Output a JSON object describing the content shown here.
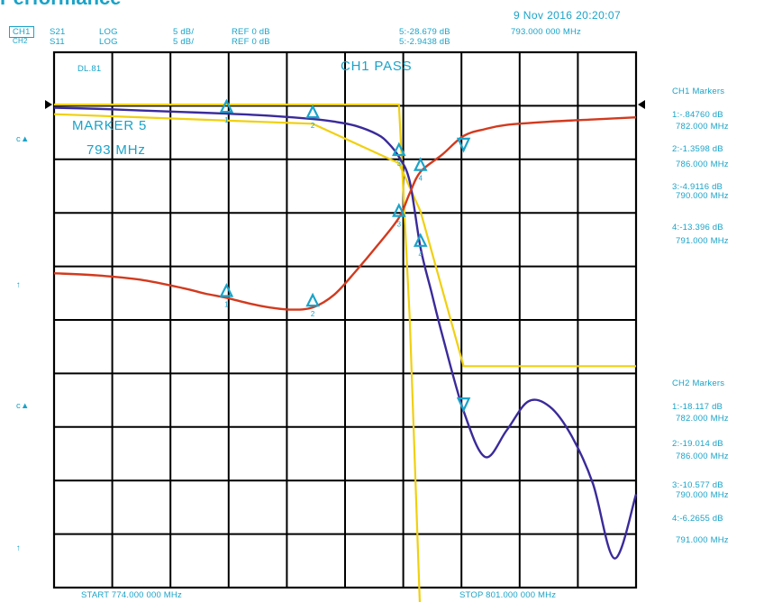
{
  "page_title_fragment": "Performance",
  "datetime": "9 Nov 2016  20:20:07",
  "header": {
    "ch1": {
      "label": "CH1",
      "param": "S21",
      "format": "LOG",
      "scale": "5 dB/",
      "ref": "REF 0 dB"
    },
    "ch2": {
      "label": "CH2",
      "param": "S11",
      "format": "LOG",
      "scale": "5 dB/",
      "ref": "REF 0 dB"
    },
    "active_marker_ch1": "5:-28.679 dB",
    "active_marker_ch2": "5:-2.9438 dB",
    "active_marker_freq": "793.000 000 MHz"
  },
  "overlay": {
    "limit_label": "DL.81",
    "pass_text": "CH1 PASS",
    "marker_title": "MARKER 5",
    "marker_freq": "793 MHz"
  },
  "left_indicators": [
    "c▲",
    "↑",
    "c▲",
    "↑"
  ],
  "ch1_markers": {
    "title": "CH1 Markers",
    "items": [
      {
        "value": "1:-.84760 dB",
        "freq": "782.000 MHz"
      },
      {
        "value": "2:-1.3598 dB",
        "freq": "786.000 MHz"
      },
      {
        "value": "3:-4.9116 dB",
        "freq": "790.000 MHz"
      },
      {
        "value": "4:-13.396 dB",
        "freq": "791.000 MHz"
      }
    ]
  },
  "ch2_markers": {
    "title": "CH2 Markers",
    "items": [
      {
        "value": "1:-18.117 dB",
        "freq": "782.000 MHz"
      },
      {
        "value": "2:-19.014 dB",
        "freq": "786.000 MHz"
      },
      {
        "value": "3:-10.577 dB",
        "freq": "790.000 MHz"
      },
      {
        "value": "4:-6.2655 dB",
        "freq": "791.000 MHz"
      }
    ]
  },
  "footer": {
    "start": "START 774.000 000 MHz",
    "stop": "STOP 801.000 000 MHz"
  },
  "colors": {
    "grid": "#000000",
    "ch1_trace": "#3a2a9a",
    "ch2_trace": "#d23a1e",
    "limit_line": "#f0d010",
    "marker": "#1aa3c8",
    "text": "#1aa3c8"
  },
  "chart_data": {
    "type": "line",
    "x_range_mhz": [
      774,
      801
    ],
    "divisions": {
      "x": 10,
      "y": 10
    },
    "marker_symbols": [
      "1",
      "2",
      "3",
      "4"
    ],
    "series": [
      {
        "x": [
          774,
          776,
          778,
          780,
          782,
          784,
          786,
          787,
          788,
          789,
          789.5,
          790,
          790.5,
          791,
          791.5,
          792,
          793,
          794,
          795,
          796,
          797,
          798,
          799,
          800,
          801
        ],
        "y": [
          -0.3,
          -0.4,
          -0.55,
          -0.7,
          -0.85,
          -1.05,
          -1.36,
          -1.6,
          -2.0,
          -2.8,
          -3.6,
          -4.9,
          -7.2,
          -13.4,
          -17.5,
          -21.5,
          -28.7,
          -33.0,
          -30.5,
          -27.8,
          -28.3,
          -31.0,
          -35.5,
          -42.5,
          -36.5
        ]
      },
      {
        "x": [
          774,
          776,
          778,
          780,
          781,
          782,
          783,
          784,
          785,
          786,
          787,
          788,
          789,
          790,
          790.5,
          791,
          792,
          793,
          794,
          795,
          797,
          799,
          801
        ],
        "y": [
          -15.8,
          -16.0,
          -16.4,
          -17.2,
          -17.7,
          -18.1,
          -18.6,
          -19.0,
          -19.2,
          -19.0,
          -17.8,
          -15.6,
          -13.2,
          -10.6,
          -8.3,
          -6.3,
          -4.7,
          -2.94,
          -2.3,
          -1.9,
          -1.6,
          -1.4,
          -1.2
        ]
      }
    ],
    "limit_lines": [
      {
        "x": [
          774,
          790,
          790.5,
          791,
          801
        ],
        "y": [
          0,
          0,
          -20,
          -48.5,
          -48.5
        ]
      },
      {
        "x": [
          774,
          786,
          790,
          791,
          793,
          801
        ],
        "y": [
          -0.9,
          -1.8,
          -5.5,
          -10,
          -24.5,
          -24.5
        ]
      }
    ]
  }
}
